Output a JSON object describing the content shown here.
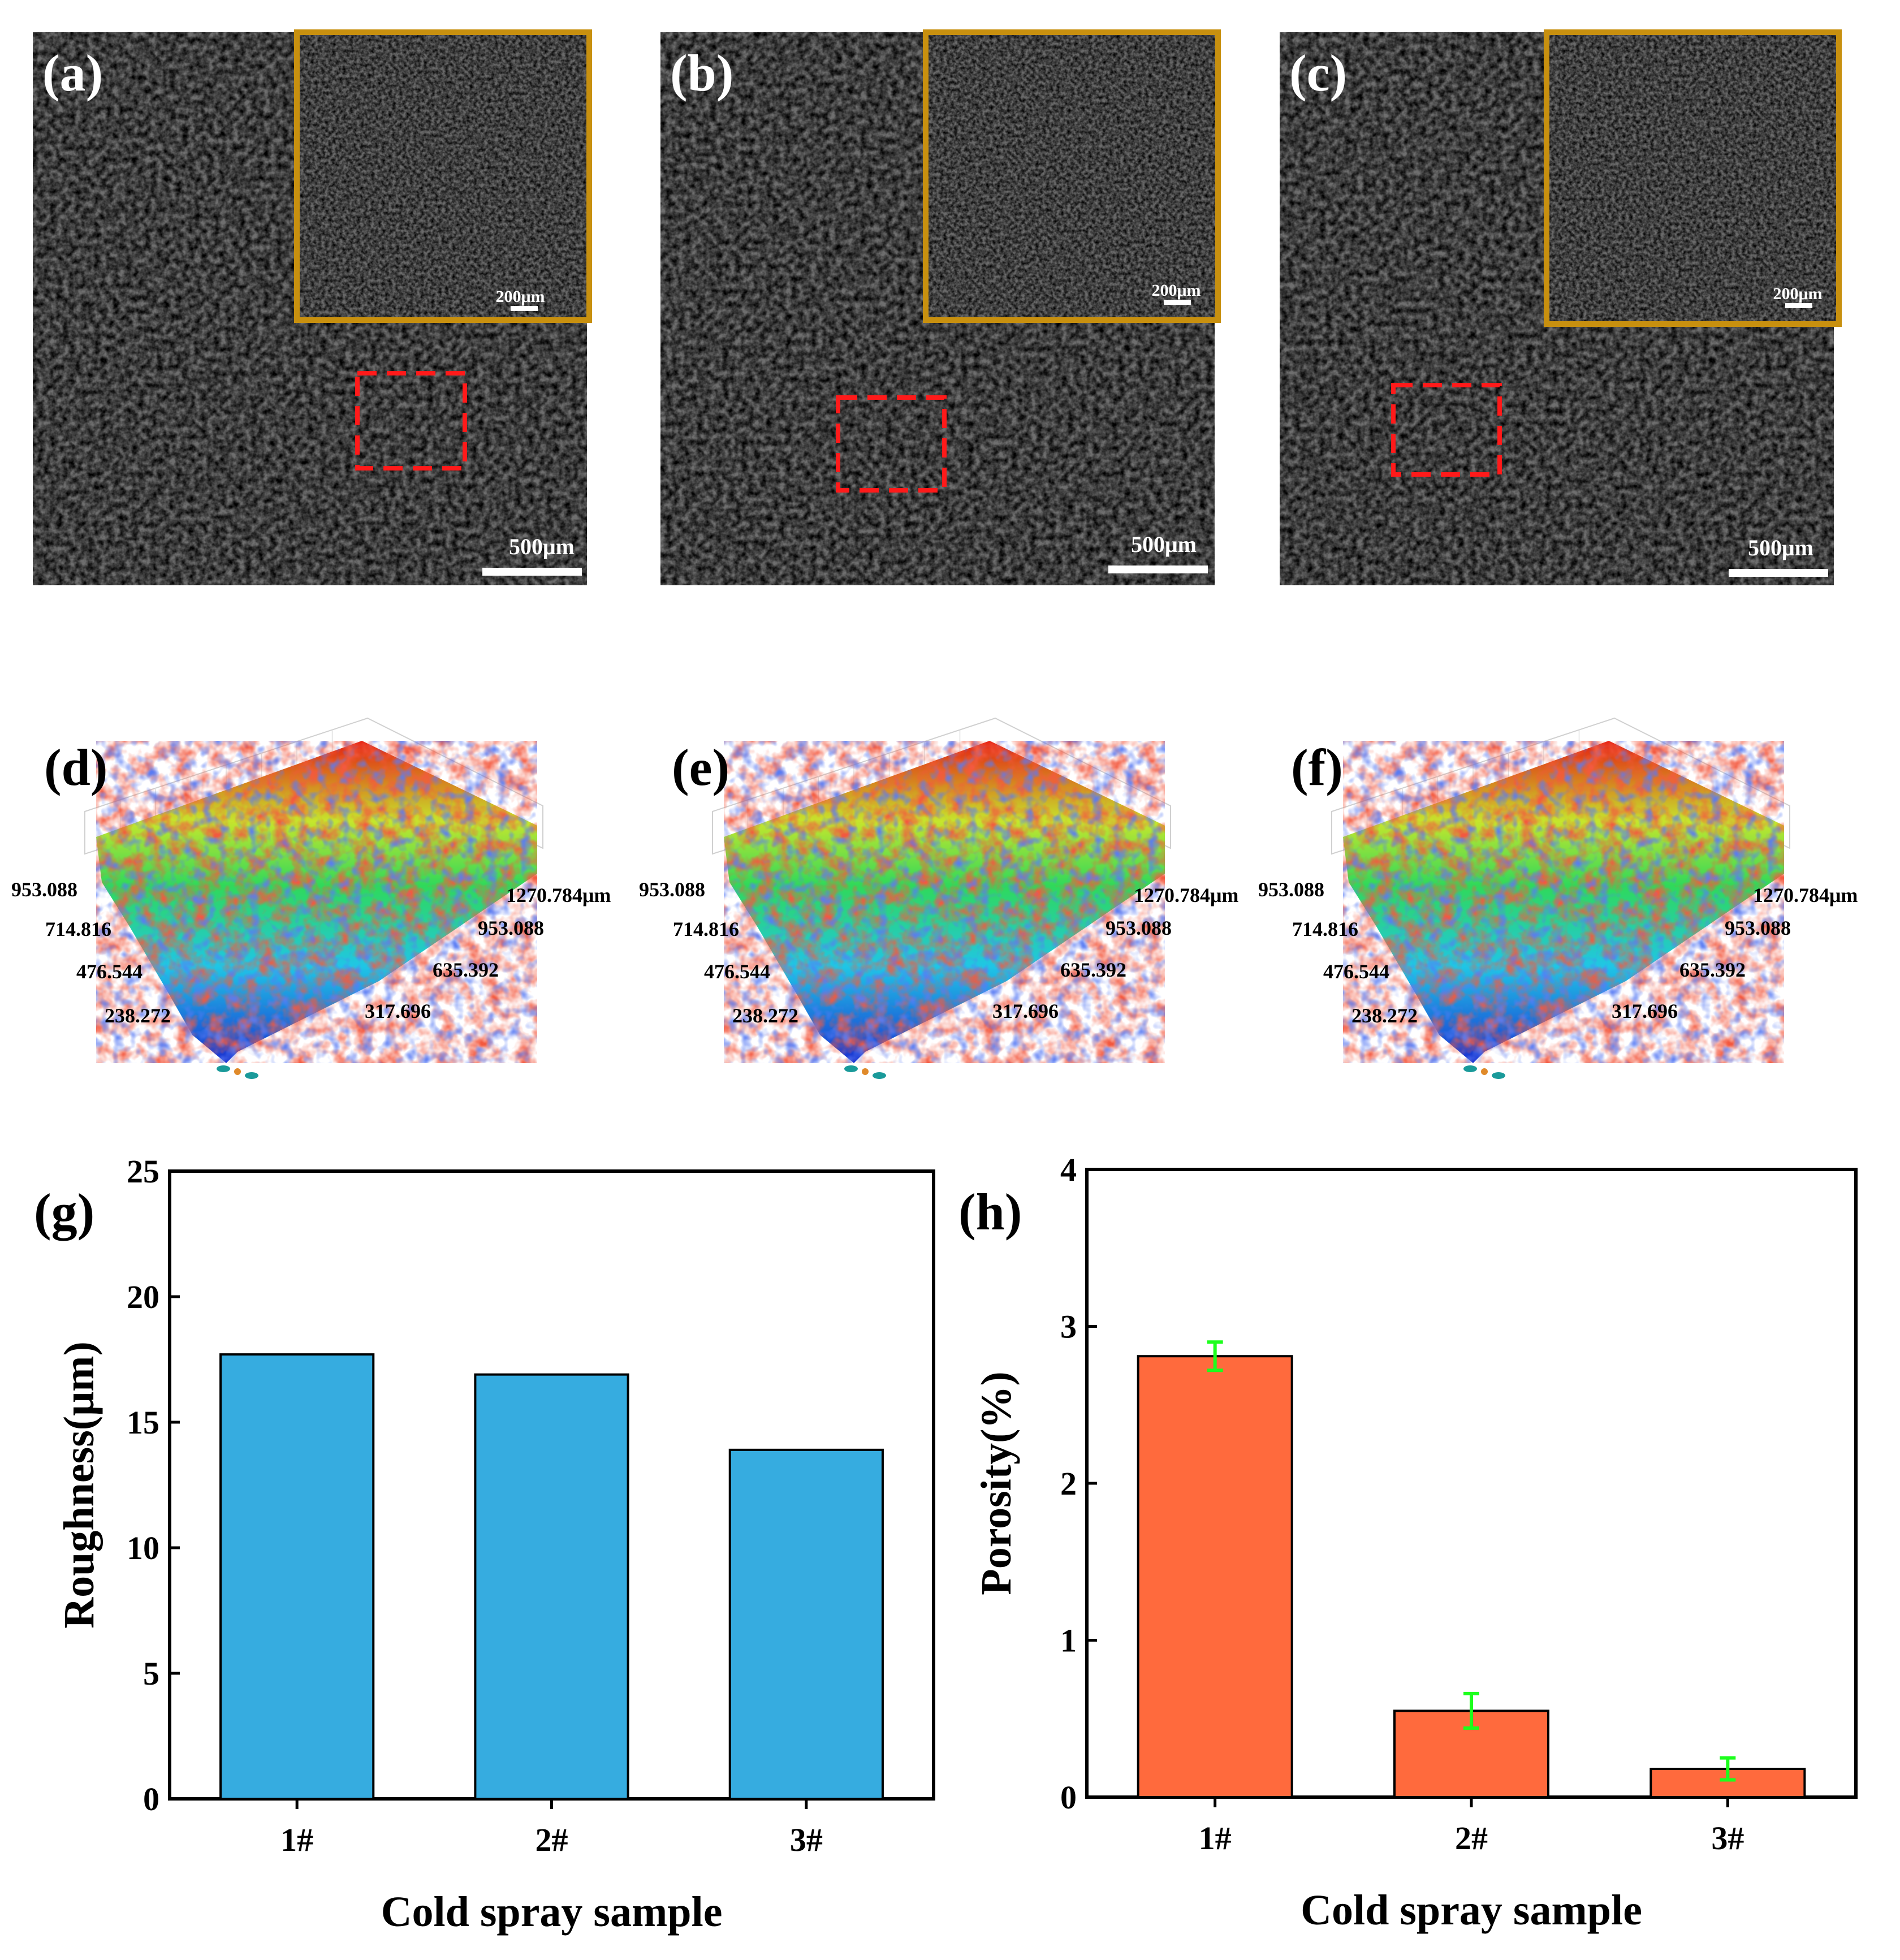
{
  "panels": {
    "a": {
      "label": "(a)",
      "scale_main": "500μm",
      "scale_inset": "200μm"
    },
    "b": {
      "label": "(b)",
      "scale_main": "500μm",
      "scale_inset": "200μm"
    },
    "c": {
      "label": "(c)",
      "scale_main": "500μm",
      "scale_inset": "200μm"
    },
    "d": {
      "label": "(d)"
    },
    "e": {
      "label": "(e)"
    },
    "f": {
      "label": "(f)"
    },
    "g": {
      "label": "(g)"
    },
    "h": {
      "label": "(h)"
    }
  },
  "topo_ticks": {
    "left": [
      "953.088",
      "714.816",
      "476.544",
      "238.272"
    ],
    "right": [
      "1270.784μm",
      "953.088",
      "635.392",
      "317.696"
    ]
  },
  "colors": {
    "inset_frame": "#c8900f",
    "dashed_box": "#ff1a1a",
    "roughness_bar": "#36ace0",
    "porosity_bar": "#ff6a3d",
    "error_bar": "#1cff1c"
  },
  "chart_data": [
    {
      "type": "bar",
      "panel": "g",
      "categories": [
        "1#",
        "2#",
        "3#"
      ],
      "values": [
        17.7,
        16.9,
        13.9
      ],
      "xlabel": "Cold spray sample",
      "ylabel": "Roughness(μm)",
      "ylim": [
        0,
        25
      ],
      "yticks": [
        "0",
        "5",
        "10",
        "15",
        "20",
        "25"
      ]
    },
    {
      "type": "bar",
      "panel": "h",
      "categories": [
        "1#",
        "2#",
        "3#"
      ],
      "values": [
        2.81,
        0.55,
        0.18
      ],
      "errors": [
        0.09,
        0.11,
        0.07
      ],
      "xlabel": "Cold spray sample",
      "ylabel": "Porosity(%)",
      "ylim": [
        0,
        4
      ],
      "yticks": [
        "0",
        "1",
        "2",
        "3",
        "4"
      ]
    }
  ]
}
